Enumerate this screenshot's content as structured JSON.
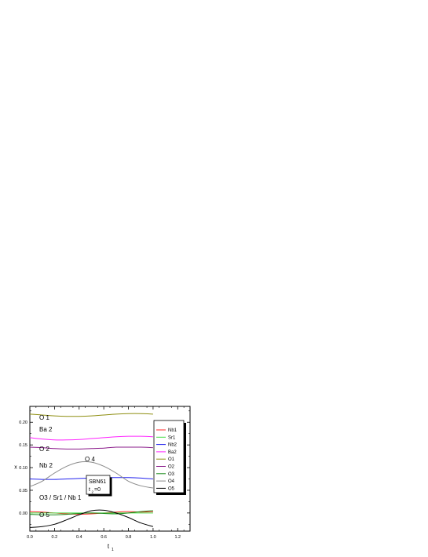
{
  "chart_data": {
    "type": "line",
    "xlabel": "t",
    "xlabel_sub": "1",
    "ylabel": "x",
    "xlim": [
      0.0,
      1.3
    ],
    "ylim": [
      -0.04,
      0.235
    ],
    "x_ticks": [
      "0.0",
      "0.2",
      "0.4",
      "0.6",
      "0.8",
      "1.0",
      "1.2"
    ],
    "y_ticks": [
      "0.00",
      "0.05",
      "0.10",
      "0.15",
      "0.20"
    ],
    "x": [
      0.0,
      0.1,
      0.2,
      0.3,
      0.4,
      0.5,
      0.6,
      0.7,
      0.8,
      0.9,
      1.0
    ],
    "series": [
      {
        "name": "Nb1",
        "color": "#ff2a2a",
        "values": [
          0.003,
          0.002,
          0.0,
          -0.002,
          -0.003,
          -0.002,
          0.0,
          0.002,
          0.003,
          0.002,
          0.003
        ]
      },
      {
        "name": "Sr1",
        "color": "#44dd44",
        "values": [
          0.0,
          0.0,
          0.0,
          0.0,
          0.0,
          0.0,
          0.0,
          0.0,
          0.0,
          0.0,
          0.0
        ]
      },
      {
        "name": "Nb2",
        "color": "#2222ee",
        "values": [
          0.075,
          0.074,
          0.074,
          0.075,
          0.076,
          0.077,
          0.078,
          0.078,
          0.078,
          0.077,
          0.075
        ]
      },
      {
        "name": "Ba2",
        "color": "#ff22ff",
        "values": [
          0.166,
          0.163,
          0.161,
          0.161,
          0.162,
          0.164,
          0.166,
          0.168,
          0.169,
          0.169,
          0.168
        ]
      },
      {
        "name": "O1",
        "color": "#8e8e10",
        "values": [
          0.218,
          0.216,
          0.214,
          0.213,
          0.213,
          0.214,
          0.216,
          0.218,
          0.219,
          0.219,
          0.218
        ]
      },
      {
        "name": "O2",
        "color": "#8a1a8a",
        "values": [
          0.145,
          0.144,
          0.142,
          0.141,
          0.141,
          0.142,
          0.143,
          0.145,
          0.145,
          0.145,
          0.144
        ]
      },
      {
        "name": "O3",
        "color": "#1a8a1a",
        "values": [
          -0.003,
          -0.004,
          -0.004,
          -0.003,
          -0.001,
          0.0,
          -0.001,
          -0.002,
          0.0,
          0.003,
          0.005
        ]
      },
      {
        "name": "O4",
        "color": "#8a8a8a",
        "values": [
          0.058,
          0.07,
          0.088,
          0.103,
          0.112,
          0.112,
          0.103,
          0.088,
          0.07,
          0.06,
          0.055
        ]
      },
      {
        "name": "O5",
        "color": "#000000",
        "values": [
          -0.032,
          -0.03,
          -0.025,
          -0.015,
          -0.004,
          0.005,
          0.006,
          0.0,
          -0.01,
          -0.022,
          -0.03
        ]
      }
    ],
    "annotations": [
      "O 1",
      "Ba 2",
      "O 2",
      "Nb 2",
      "O 4",
      "O3 / Sr1 / Nb 1",
      "O 5"
    ],
    "inset_label": "SBN61",
    "inset_sublabel_t": "t",
    "inset_sublabel_sub": "2",
    "inset_sublabel_rest": "=0",
    "legend_position": "right",
    "grid": false
  }
}
